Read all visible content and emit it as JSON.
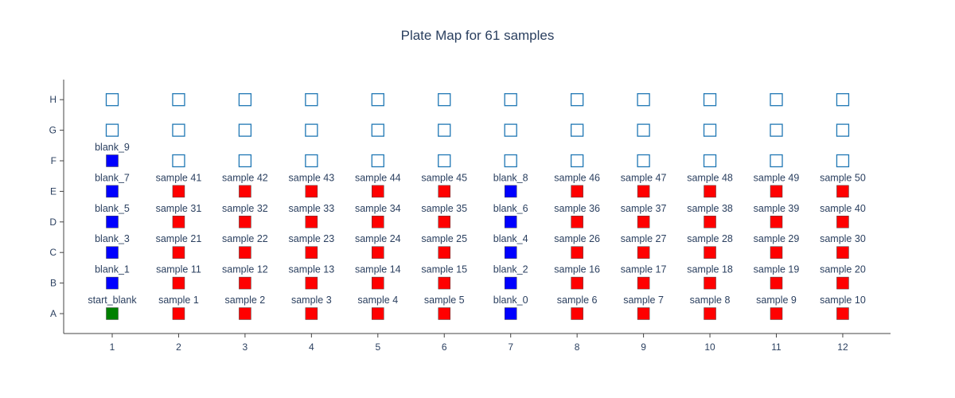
{
  "chart_data": {
    "type": "scatter",
    "title": "Plate Map for 61 samples",
    "xlabel": "",
    "ylabel": "",
    "x_categories": [
      "1",
      "2",
      "3",
      "4",
      "5",
      "6",
      "7",
      "8",
      "9",
      "10",
      "11",
      "12"
    ],
    "y_categories": [
      "A",
      "B",
      "C",
      "D",
      "E",
      "F",
      "G",
      "H"
    ],
    "grid": false,
    "colors": {
      "start_blank": "#008000",
      "blank": "#0000ff",
      "sample": "#ff0000",
      "empty_outline": "#1f77b4",
      "axis": "#444444",
      "text": "#2a3f5f"
    },
    "wells": [
      {
        "col": "1",
        "row": "A",
        "label": "start_blank",
        "kind": "start_blank"
      },
      {
        "col": "2",
        "row": "A",
        "label": "sample 1",
        "kind": "sample"
      },
      {
        "col": "3",
        "row": "A",
        "label": "sample 2",
        "kind": "sample"
      },
      {
        "col": "4",
        "row": "A",
        "label": "sample 3",
        "kind": "sample"
      },
      {
        "col": "5",
        "row": "A",
        "label": "sample 4",
        "kind": "sample"
      },
      {
        "col": "6",
        "row": "A",
        "label": "sample 5",
        "kind": "sample"
      },
      {
        "col": "7",
        "row": "A",
        "label": "blank_0",
        "kind": "blank"
      },
      {
        "col": "8",
        "row": "A",
        "label": "sample 6",
        "kind": "sample"
      },
      {
        "col": "9",
        "row": "A",
        "label": "sample 7",
        "kind": "sample"
      },
      {
        "col": "10",
        "row": "A",
        "label": "sample 8",
        "kind": "sample"
      },
      {
        "col": "11",
        "row": "A",
        "label": "sample 9",
        "kind": "sample"
      },
      {
        "col": "12",
        "row": "A",
        "label": "sample 10",
        "kind": "sample"
      },
      {
        "col": "1",
        "row": "B",
        "label": "blank_1",
        "kind": "blank"
      },
      {
        "col": "2",
        "row": "B",
        "label": "sample 11",
        "kind": "sample"
      },
      {
        "col": "3",
        "row": "B",
        "label": "sample 12",
        "kind": "sample"
      },
      {
        "col": "4",
        "row": "B",
        "label": "sample 13",
        "kind": "sample"
      },
      {
        "col": "5",
        "row": "B",
        "label": "sample 14",
        "kind": "sample"
      },
      {
        "col": "6",
        "row": "B",
        "label": "sample 15",
        "kind": "sample"
      },
      {
        "col": "7",
        "row": "B",
        "label": "blank_2",
        "kind": "blank"
      },
      {
        "col": "8",
        "row": "B",
        "label": "sample 16",
        "kind": "sample"
      },
      {
        "col": "9",
        "row": "B",
        "label": "sample 17",
        "kind": "sample"
      },
      {
        "col": "10",
        "row": "B",
        "label": "sample 18",
        "kind": "sample"
      },
      {
        "col": "11",
        "row": "B",
        "label": "sample 19",
        "kind": "sample"
      },
      {
        "col": "12",
        "row": "B",
        "label": "sample 20",
        "kind": "sample"
      },
      {
        "col": "1",
        "row": "C",
        "label": "blank_3",
        "kind": "blank"
      },
      {
        "col": "2",
        "row": "C",
        "label": "sample 21",
        "kind": "sample"
      },
      {
        "col": "3",
        "row": "C",
        "label": "sample 22",
        "kind": "sample"
      },
      {
        "col": "4",
        "row": "C",
        "label": "sample 23",
        "kind": "sample"
      },
      {
        "col": "5",
        "row": "C",
        "label": "sample 24",
        "kind": "sample"
      },
      {
        "col": "6",
        "row": "C",
        "label": "sample 25",
        "kind": "sample"
      },
      {
        "col": "7",
        "row": "C",
        "label": "blank_4",
        "kind": "blank"
      },
      {
        "col": "8",
        "row": "C",
        "label": "sample 26",
        "kind": "sample"
      },
      {
        "col": "9",
        "row": "C",
        "label": "sample 27",
        "kind": "sample"
      },
      {
        "col": "10",
        "row": "C",
        "label": "sample 28",
        "kind": "sample"
      },
      {
        "col": "11",
        "row": "C",
        "label": "sample 29",
        "kind": "sample"
      },
      {
        "col": "12",
        "row": "C",
        "label": "sample 30",
        "kind": "sample"
      },
      {
        "col": "1",
        "row": "D",
        "label": "blank_5",
        "kind": "blank"
      },
      {
        "col": "2",
        "row": "D",
        "label": "sample 31",
        "kind": "sample"
      },
      {
        "col": "3",
        "row": "D",
        "label": "sample 32",
        "kind": "sample"
      },
      {
        "col": "4",
        "row": "D",
        "label": "sample 33",
        "kind": "sample"
      },
      {
        "col": "5",
        "row": "D",
        "label": "sample 34",
        "kind": "sample"
      },
      {
        "col": "6",
        "row": "D",
        "label": "sample 35",
        "kind": "sample"
      },
      {
        "col": "7",
        "row": "D",
        "label": "blank_6",
        "kind": "blank"
      },
      {
        "col": "8",
        "row": "D",
        "label": "sample 36",
        "kind": "sample"
      },
      {
        "col": "9",
        "row": "D",
        "label": "sample 37",
        "kind": "sample"
      },
      {
        "col": "10",
        "row": "D",
        "label": "sample 38",
        "kind": "sample"
      },
      {
        "col": "11",
        "row": "D",
        "label": "sample 39",
        "kind": "sample"
      },
      {
        "col": "12",
        "row": "D",
        "label": "sample 40",
        "kind": "sample"
      },
      {
        "col": "1",
        "row": "E",
        "label": "blank_7",
        "kind": "blank"
      },
      {
        "col": "2",
        "row": "E",
        "label": "sample 41",
        "kind": "sample"
      },
      {
        "col": "3",
        "row": "E",
        "label": "sample 42",
        "kind": "sample"
      },
      {
        "col": "4",
        "row": "E",
        "label": "sample 43",
        "kind": "sample"
      },
      {
        "col": "5",
        "row": "E",
        "label": "sample 44",
        "kind": "sample"
      },
      {
        "col": "6",
        "row": "E",
        "label": "sample 45",
        "kind": "sample"
      },
      {
        "col": "7",
        "row": "E",
        "label": "blank_8",
        "kind": "blank"
      },
      {
        "col": "8",
        "row": "E",
        "label": "sample 46",
        "kind": "sample"
      },
      {
        "col": "9",
        "row": "E",
        "label": "sample 47",
        "kind": "sample"
      },
      {
        "col": "10",
        "row": "E",
        "label": "sample 48",
        "kind": "sample"
      },
      {
        "col": "11",
        "row": "E",
        "label": "sample 49",
        "kind": "sample"
      },
      {
        "col": "12",
        "row": "E",
        "label": "sample 50",
        "kind": "sample"
      },
      {
        "col": "1",
        "row": "F",
        "label": "blank_9",
        "kind": "blank"
      },
      {
        "col": "2",
        "row": "F",
        "label": "",
        "kind": "empty"
      },
      {
        "col": "3",
        "row": "F",
        "label": "",
        "kind": "empty"
      },
      {
        "col": "4",
        "row": "F",
        "label": "",
        "kind": "empty"
      },
      {
        "col": "5",
        "row": "F",
        "label": "",
        "kind": "empty"
      },
      {
        "col": "6",
        "row": "F",
        "label": "",
        "kind": "empty"
      },
      {
        "col": "7",
        "row": "F",
        "label": "",
        "kind": "empty"
      },
      {
        "col": "8",
        "row": "F",
        "label": "",
        "kind": "empty"
      },
      {
        "col": "9",
        "row": "F",
        "label": "",
        "kind": "empty"
      },
      {
        "col": "10",
        "row": "F",
        "label": "",
        "kind": "empty"
      },
      {
        "col": "11",
        "row": "F",
        "label": "",
        "kind": "empty"
      },
      {
        "col": "12",
        "row": "F",
        "label": "",
        "kind": "empty"
      },
      {
        "col": "1",
        "row": "G",
        "label": "",
        "kind": "empty"
      },
      {
        "col": "2",
        "row": "G",
        "label": "",
        "kind": "empty"
      },
      {
        "col": "3",
        "row": "G",
        "label": "",
        "kind": "empty"
      },
      {
        "col": "4",
        "row": "G",
        "label": "",
        "kind": "empty"
      },
      {
        "col": "5",
        "row": "G",
        "label": "",
        "kind": "empty"
      },
      {
        "col": "6",
        "row": "G",
        "label": "",
        "kind": "empty"
      },
      {
        "col": "7",
        "row": "G",
        "label": "",
        "kind": "empty"
      },
      {
        "col": "8",
        "row": "G",
        "label": "",
        "kind": "empty"
      },
      {
        "col": "9",
        "row": "G",
        "label": "",
        "kind": "empty"
      },
      {
        "col": "10",
        "row": "G",
        "label": "",
        "kind": "empty"
      },
      {
        "col": "11",
        "row": "G",
        "label": "",
        "kind": "empty"
      },
      {
        "col": "12",
        "row": "G",
        "label": "",
        "kind": "empty"
      },
      {
        "col": "1",
        "row": "H",
        "label": "",
        "kind": "empty"
      },
      {
        "col": "2",
        "row": "H",
        "label": "",
        "kind": "empty"
      },
      {
        "col": "3",
        "row": "H",
        "label": "",
        "kind": "empty"
      },
      {
        "col": "4",
        "row": "H",
        "label": "",
        "kind": "empty"
      },
      {
        "col": "5",
        "row": "H",
        "label": "",
        "kind": "empty"
      },
      {
        "col": "6",
        "row": "H",
        "label": "",
        "kind": "empty"
      },
      {
        "col": "7",
        "row": "H",
        "label": "",
        "kind": "empty"
      },
      {
        "col": "8",
        "row": "H",
        "label": "",
        "kind": "empty"
      },
      {
        "col": "9",
        "row": "H",
        "label": "",
        "kind": "empty"
      },
      {
        "col": "10",
        "row": "H",
        "label": "",
        "kind": "empty"
      },
      {
        "col": "11",
        "row": "H",
        "label": "",
        "kind": "empty"
      },
      {
        "col": "12",
        "row": "H",
        "label": "",
        "kind": "empty"
      }
    ]
  }
}
